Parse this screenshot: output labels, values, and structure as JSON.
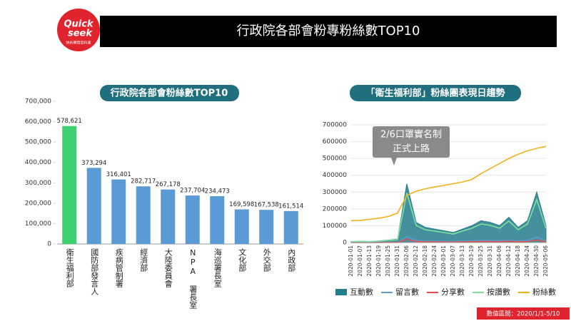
{
  "header": {
    "title": "行政院各部會粉專粉絲數TOP10",
    "logo_top": "Quick",
    "logo_bottom": "seek",
    "logo_caption": "快析輿情資料庫"
  },
  "footer_note": "數值區間：2020/1/1-5/10",
  "chart_data": [
    {
      "type": "bar",
      "title": "行政院各部會粉絲數TOP10",
      "categories": [
        "衛生福利部",
        "國防部發言人",
        "疾病管制署",
        "經濟部",
        "大陸委員會",
        "NPA 署長室",
        "海巡署長室",
        "文化部",
        "外交部",
        "內政部"
      ],
      "values": [
        578621,
        373294,
        316401,
        282717,
        267178,
        237704,
        234473,
        169598,
        167538,
        161514
      ],
      "value_labels": [
        "578,621",
        "373,294",
        "316,401",
        "282,717",
        "267,178",
        "237,704",
        "234,473",
        "169,598",
        "167,538",
        "161,514"
      ],
      "colors": [
        "#3ecf6e",
        "#5b9bd5",
        "#5b9bd5",
        "#5b9bd5",
        "#5b9bd5",
        "#5b9bd5",
        "#5b9bd5",
        "#5b9bd5",
        "#5b9bd5",
        "#5b9bd5"
      ],
      "ylim": [
        0,
        700000
      ],
      "yticks": [
        0,
        {
          "value": 100000,
          "label": "100,000"
        },
        {
          "value": 200000,
          "label": "200,000"
        },
        {
          "value": 300000,
          "label": "300,000"
        },
        {
          "value": 400000,
          "label": "400,000"
        },
        {
          "value": 500000,
          "label": "500,000"
        },
        {
          "value": 600000,
          "label": "600,000"
        },
        {
          "value": 700000,
          "label": "700,000"
        }
      ],
      "grid": false
    },
    {
      "type": "line",
      "title": "「衛生福利部」粉絲團表現日趨勢",
      "categories": [
        "2020-01-01",
        "2020-01-07",
        "2020-01-13",
        "2020-01-19",
        "2020-01-25",
        "2020-01-31",
        "2020-02-06",
        "2020-02-12",
        "2020-02-18",
        "2020-02-24",
        "2020-03-01",
        "2020-03-07",
        "2020-03-13",
        "2020-03-19",
        "2020-03-25",
        "2020-03-31",
        "2020-04-06",
        "2020-04-12",
        "2020-04-18",
        "2020-04-24",
        "2020-04-30",
        "2020-05-06"
      ],
      "series": [
        {
          "name": "互動數",
          "color": "#237d8c",
          "kind": "area",
          "values": [
            5000,
            8000,
            6000,
            10000,
            15000,
            20000,
            350000,
            120000,
            90000,
            80000,
            70000,
            60000,
            80000,
            100000,
            130000,
            120000,
            100000,
            150000,
            90000,
            130000,
            300000,
            100000
          ]
        },
        {
          "name": "留言數",
          "color": "#5b9bd5",
          "kind": "line",
          "values": [
            500,
            800,
            600,
            1000,
            1500,
            2000,
            35000,
            12000,
            9000,
            8000,
            7000,
            6000,
            8000,
            10000,
            13000,
            12000,
            10000,
            15000,
            9000,
            13000,
            30000,
            10000
          ]
        },
        {
          "name": "分享數",
          "color": "#e0504a",
          "kind": "line",
          "values": [
            300,
            400,
            300,
            500,
            800,
            1000,
            20000,
            6000,
            5000,
            4000,
            3500,
            3000,
            4000,
            5000,
            6500,
            6000,
            5000,
            7500,
            4500,
            6500,
            15000,
            5000
          ]
        },
        {
          "name": "按讚數",
          "color": "#7fe0a0",
          "kind": "line",
          "values": [
            4200,
            6800,
            5100,
            8500,
            12700,
            17000,
            295000,
            102000,
            76000,
            68000,
            59500,
            51000,
            68000,
            85000,
            110500,
            102000,
            85000,
            127500,
            76500,
            110500,
            255000,
            85000
          ]
        },
        {
          "name": "粉絲數",
          "color": "#f2b01e",
          "kind": "line",
          "values": [
            130000,
            132000,
            138000,
            145000,
            155000,
            175000,
            280000,
            305000,
            320000,
            330000,
            340000,
            350000,
            360000,
            375000,
            410000,
            440000,
            470000,
            500000,
            525000,
            545000,
            560000,
            572000
          ]
        }
      ],
      "ylim": [
        0,
        700000
      ],
      "yticks": [
        0,
        100000,
        200000,
        300000,
        400000,
        500000,
        600000,
        700000
      ],
      "grid": true,
      "legend": "bottom",
      "annotations": [
        "2/6口罩實名制",
        "正式上路"
      ]
    }
  ]
}
